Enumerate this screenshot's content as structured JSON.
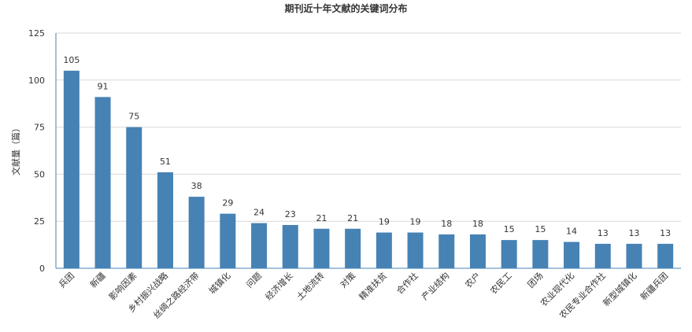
{
  "chart_data": {
    "type": "bar",
    "title": "期刊近十年文献的关键词分布",
    "ylabel": "文献量（篇）",
    "xlabel": "",
    "ylim": [
      0,
      125
    ],
    "yticks": [
      0,
      25,
      50,
      75,
      100,
      125
    ],
    "grid": true,
    "bar_color": "#4682b4",
    "categories": [
      "兵团",
      "新疆",
      "影响因素",
      "乡村振兴战略",
      "丝绸之路经济带",
      "城镇化",
      "问题",
      "经济增长",
      "土地流转",
      "对策",
      "精准扶贫",
      "合作社",
      "产业结构",
      "农户",
      "农民工",
      "团场",
      "农业现代化",
      "农民专业合作社",
      "新型城镇化",
      "新疆兵团"
    ],
    "values": [
      105,
      91,
      75,
      51,
      38,
      29,
      24,
      23,
      21,
      21,
      19,
      19,
      18,
      18,
      15,
      15,
      14,
      13,
      13,
      13
    ]
  }
}
